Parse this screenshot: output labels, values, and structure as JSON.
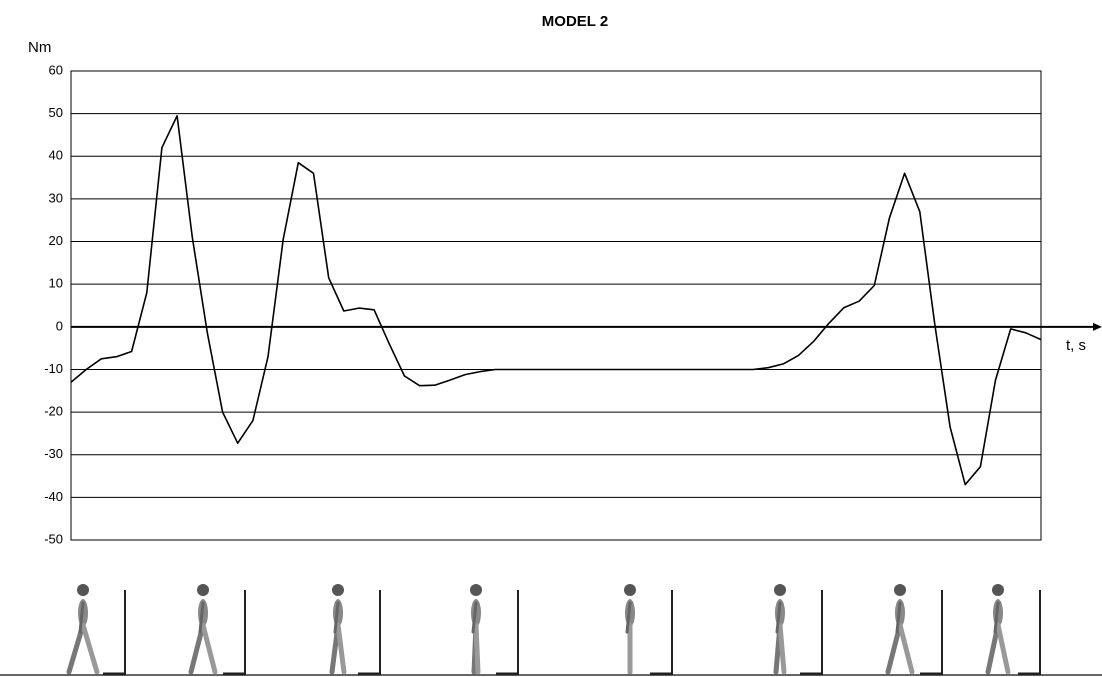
{
  "chart_data": {
    "type": "line",
    "title": "MODEL 2",
    "y_label": "Nm",
    "x_label": "t, s",
    "categories": [
      null,
      null,
      null,
      null,
      null,
      null,
      null,
      null,
      null,
      null,
      null,
      null,
      null,
      null,
      null,
      null,
      null,
      null,
      null,
      null,
      null,
      null,
      null,
      null,
      null,
      null,
      null,
      null,
      null,
      null,
      null,
      null,
      null,
      null,
      null,
      null,
      null,
      null,
      null,
      null,
      null,
      null,
      null,
      null,
      null,
      null,
      null,
      null,
      null,
      null,
      null,
      null,
      null,
      null,
      null,
      null,
      null,
      null,
      null,
      null,
      null,
      null,
      null,
      null,
      null
    ],
    "series": [
      {
        "name": null,
        "color": "#000000",
        "values": [
          -13,
          -10,
          -7.5,
          -7,
          -5.8,
          8,
          42,
          49.5,
          21,
          -1.5,
          -20,
          -27.3,
          -22,
          -7,
          20.5,
          38.5,
          36,
          11.5,
          3.7,
          4.4,
          4,
          -4,
          -11.5,
          -13.8,
          -13.7,
          -12.5,
          -11.2,
          -10.5,
          -10,
          -10,
          -10,
          -10,
          -10,
          -10,
          -10,
          -10,
          -10,
          -10,
          -10,
          -10,
          -10,
          -10,
          -10,
          -10,
          -10,
          -10,
          -9.6,
          -8.7,
          -6.7,
          -3.4,
          0.8,
          4.5,
          6,
          9.7,
          25.5,
          36,
          27,
          0.4,
          -23.5,
          -37,
          -32.8,
          -12.5,
          -0.5,
          -1.4,
          -3
        ]
      }
    ],
    "ylim": [
      -50,
      60
    ],
    "yticks": [
      -50,
      -40,
      -30,
      -20,
      -10,
      0,
      10,
      20,
      30,
      40,
      50,
      60
    ],
    "grid": true
  }
}
